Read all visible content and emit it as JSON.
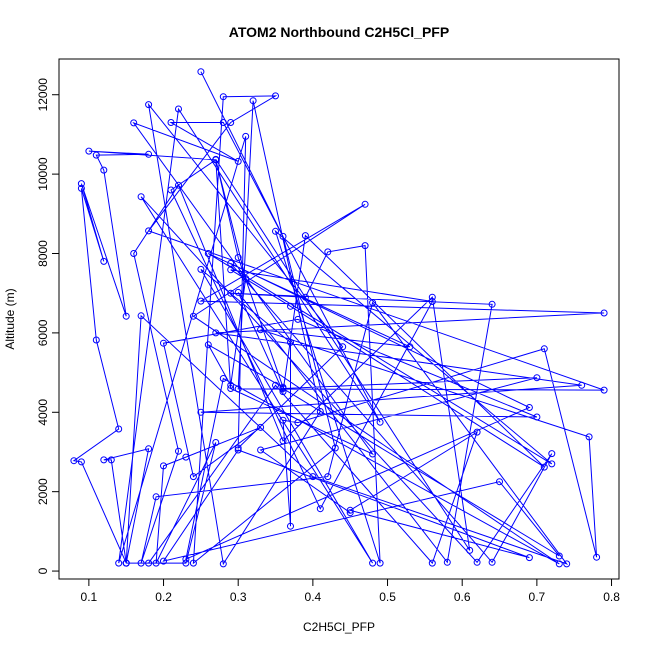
{
  "chart_data": {
    "type": "line",
    "title": "ATOM2 Northbound C2H5Cl_PFP",
    "xlabel": "C2H5Cl_PFP",
    "ylabel": "Altitude (m)",
    "xlim": [
      0.06,
      0.81
    ],
    "ylim": [
      -200,
      12900
    ],
    "xticks": [
      0.1,
      0.2,
      0.3,
      0.4,
      0.5,
      0.6,
      0.7,
      0.8
    ],
    "xtick_labels": [
      "0.1",
      "0.2",
      "0.3",
      "0.4",
      "0.5",
      "0.6",
      "0.7",
      "0.8"
    ],
    "yticks": [
      0,
      2000,
      4000,
      6000,
      8000,
      10000,
      12000
    ],
    "ytick_labels": [
      "0",
      "2000",
      "4000",
      "6000",
      "8000",
      "10000",
      "12000"
    ],
    "grid": false,
    "series": [
      {
        "color": "#0000ff",
        "marker": "open-circle",
        "points": [
          [
            0.25,
            12580
          ],
          [
            0.36,
            8430
          ],
          [
            0.43,
            3100
          ],
          [
            0.24,
            200
          ],
          [
            0.28,
            11950
          ],
          [
            0.35,
            11970
          ],
          [
            0.29,
            11300
          ],
          [
            0.18,
            8570
          ],
          [
            0.79,
            4560
          ],
          [
            0.3,
            4590
          ],
          [
            0.32,
            11850
          ],
          [
            0.41,
            4020
          ],
          [
            0.28,
            180
          ],
          [
            0.18,
            11750
          ],
          [
            0.44,
            5650
          ],
          [
            0.3,
            3100
          ],
          [
            0.31,
            10950
          ],
          [
            0.14,
            200
          ],
          [
            0.22,
            11640
          ],
          [
            0.49,
            3750
          ],
          [
            0.28,
            11300
          ],
          [
            0.21,
            11300
          ],
          [
            0.3,
            10320
          ],
          [
            0.16,
            11290
          ],
          [
            0.48,
            2950
          ],
          [
            0.29,
            4600
          ],
          [
            0.27,
            10360
          ],
          [
            0.1,
            10580
          ],
          [
            0.18,
            10500
          ],
          [
            0.11,
            10480
          ],
          [
            0.12,
            10100
          ],
          [
            0.15,
            6420
          ],
          [
            0.09,
            9760
          ],
          [
            0.12,
            7800
          ],
          [
            0.09,
            9640
          ],
          [
            0.11,
            5820
          ],
          [
            0.14,
            3580
          ],
          [
            0.08,
            2780
          ],
          [
            0.09,
            2750
          ],
          [
            0.15,
            200
          ],
          [
            0.13,
            2800
          ],
          [
            0.12,
            2800
          ],
          [
            0.18,
            3080
          ],
          [
            0.15,
            200
          ],
          [
            0.17,
            6430
          ],
          [
            0.4,
            2380
          ],
          [
            0.74,
            180
          ],
          [
            0.48,
            6760
          ],
          [
            0.42,
            2380
          ],
          [
            0.19,
            1870
          ],
          [
            0.17,
            200
          ],
          [
            0.22,
            3020
          ],
          [
            0.16,
            8000
          ],
          [
            0.22,
            9720
          ],
          [
            0.36,
            3280
          ],
          [
            0.56,
            6900
          ],
          [
            0.61,
            520
          ],
          [
            0.27,
            10370
          ],
          [
            0.3,
            7900
          ],
          [
            0.36,
            4630
          ],
          [
            0.26,
            5700
          ],
          [
            0.29,
            4680
          ],
          [
            0.31,
            7370
          ],
          [
            0.27,
            10360
          ],
          [
            0.21,
            9600
          ],
          [
            0.41,
            1570
          ],
          [
            0.56,
            6790
          ],
          [
            0.29,
            7590
          ],
          [
            0.37,
            6670
          ],
          [
            0.71,
            2620
          ],
          [
            0.39,
            8450
          ],
          [
            0.36,
            4520
          ],
          [
            0.3,
            7020
          ],
          [
            0.58,
            220
          ],
          [
            0.64,
            6720
          ],
          [
            0.29,
            7000
          ],
          [
            0.39,
            6900
          ],
          [
            0.42,
            8040
          ],
          [
            0.47,
            8200
          ],
          [
            0.49,
            200
          ],
          [
            0.35,
            8560
          ],
          [
            0.72,
            2700
          ],
          [
            0.26,
            8000
          ],
          [
            0.53,
            5650
          ],
          [
            0.33,
            6080
          ],
          [
            0.77,
            3380
          ],
          [
            0.78,
            350
          ],
          [
            0.71,
            5600
          ],
          [
            0.38,
            3740
          ],
          [
            0.36,
            3800
          ],
          [
            0.37,
            1130
          ],
          [
            0.37,
            5760
          ],
          [
            0.25,
            7600
          ],
          [
            0.48,
            200
          ],
          [
            0.17,
            9430
          ],
          [
            0.62,
            220
          ],
          [
            0.72,
            2960
          ],
          [
            0.64,
            220
          ],
          [
            0.29,
            7750
          ],
          [
            0.69,
            4120
          ],
          [
            0.23,
            300
          ],
          [
            0.28,
            4850
          ],
          [
            0.73,
            180
          ],
          [
            0.24,
            6420
          ],
          [
            0.47,
            9240
          ],
          [
            0.25,
            6800
          ],
          [
            0.79,
            6500
          ],
          [
            0.27,
            6000
          ],
          [
            0.76,
            4680
          ],
          [
            0.25,
            4000
          ],
          [
            0.7,
            3880
          ],
          [
            0.38,
            6340
          ],
          [
            0.2,
            5740
          ],
          [
            0.24,
            2380
          ],
          [
            0.33,
            3620
          ],
          [
            0.23,
            2870
          ],
          [
            0.2,
            2650
          ],
          [
            0.19,
            200
          ],
          [
            0.27,
            3240
          ],
          [
            0.23,
            200
          ],
          [
            0.15,
            200
          ],
          [
            0.18,
            200
          ],
          [
            0.35,
            4680
          ],
          [
            0.56,
            200
          ],
          [
            0.62,
            3500
          ],
          [
            0.45,
            1530
          ],
          [
            0.69,
            340
          ],
          [
            0.3,
            3050
          ],
          [
            0.2,
            250
          ],
          [
            0.65,
            2250
          ],
          [
            0.73,
            380
          ],
          [
            0.36,
            4600
          ],
          [
            0.7,
            4870
          ],
          [
            0.33,
            3050
          ],
          [
            0.45,
            1470
          ]
        ]
      }
    ]
  }
}
